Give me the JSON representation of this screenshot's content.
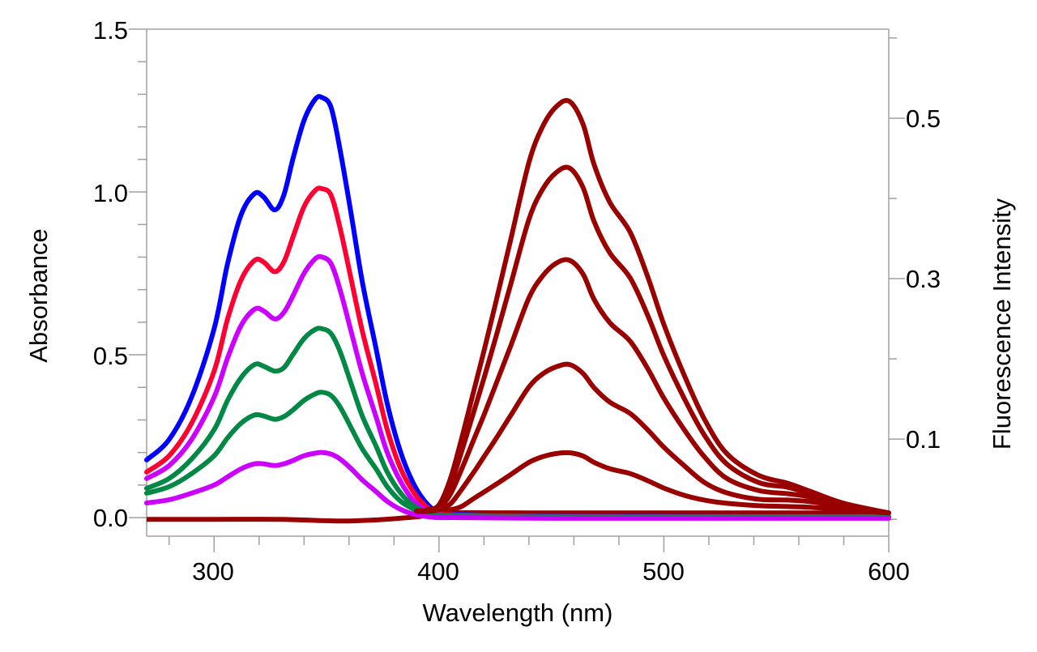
{
  "chart_data": {
    "type": "line",
    "xlabel": "Wavelength (nm)",
    "ylabel": "Absorbance",
    "ylabel_right": "Fluorescence Intensity",
    "xlim": [
      270,
      600
    ],
    "ylim": [
      -0.057,
      1.5
    ],
    "ylim_right": [
      -0.021,
      0.611
    ],
    "grid": false,
    "x_ticks": [
      "300",
      "400",
      "500",
      "600"
    ],
    "y_ticks": [
      "0.0",
      "0.5",
      "1.0",
      "1.5"
    ],
    "y_right_ticks": [
      "0.1",
      "0.3",
      "0.5"
    ],
    "absorbance": {
      "x": [
        270,
        280,
        290,
        300,
        306,
        312,
        318,
        322,
        327,
        331,
        335,
        340,
        345,
        348,
        352,
        356,
        361,
        366,
        372,
        377,
        383,
        389,
        395,
        400,
        410,
        450,
        500,
        550,
        600
      ],
      "series": [
        {
          "color": "#0000ff",
          "values": [
            0.177,
            0.24,
            0.37,
            0.58,
            0.78,
            0.93,
            0.995,
            0.985,
            0.945,
            0.99,
            1.1,
            1.22,
            1.285,
            1.29,
            1.26,
            1.13,
            0.93,
            0.72,
            0.52,
            0.35,
            0.2,
            0.1,
            0.04,
            0.02,
            0.01,
            0.005,
            0.004,
            0.003,
            0.003
          ]
        },
        {
          "color": "#ff0033",
          "values": [
            0.14,
            0.19,
            0.29,
            0.45,
            0.61,
            0.73,
            0.79,
            0.785,
            0.755,
            0.785,
            0.86,
            0.955,
            1.005,
            1.01,
            0.99,
            0.89,
            0.73,
            0.57,
            0.41,
            0.27,
            0.15,
            0.075,
            0.03,
            0.015,
            0.008,
            0.004,
            0.003,
            0.003,
            0.003
          ]
        },
        {
          "color": "#cc00ff",
          "values": [
            0.12,
            0.16,
            0.24,
            0.37,
            0.49,
            0.59,
            0.64,
            0.635,
            0.61,
            0.63,
            0.68,
            0.75,
            0.795,
            0.8,
            0.78,
            0.7,
            0.57,
            0.44,
            0.31,
            0.2,
            0.11,
            0.05,
            0.02,
            0.01,
            0.005,
            0.003,
            0.002,
            0.002,
            0.002
          ]
        },
        {
          "color": "#008844",
          "values": [
            0.09,
            0.12,
            0.18,
            0.27,
            0.36,
            0.43,
            0.47,
            0.465,
            0.45,
            0.46,
            0.5,
            0.55,
            0.578,
            0.58,
            0.565,
            0.51,
            0.41,
            0.31,
            0.22,
            0.14,
            0.075,
            0.035,
            0.015,
            0.008,
            0.005,
            0.003,
            0.002,
            0.002,
            0.002
          ]
        },
        {
          "color": "#008844",
          "values": [
            0.075,
            0.095,
            0.135,
            0.19,
            0.245,
            0.29,
            0.315,
            0.312,
            0.302,
            0.31,
            0.33,
            0.36,
            0.38,
            0.385,
            0.375,
            0.34,
            0.275,
            0.21,
            0.15,
            0.095,
            0.05,
            0.025,
            0.01,
            0.006,
            0.004,
            0.003,
            0.002,
            0.002,
            0.002
          ]
        },
        {
          "color": "#cc00ff",
          "values": [
            0.045,
            0.055,
            0.075,
            0.1,
            0.125,
            0.15,
            0.165,
            0.165,
            0.16,
            0.165,
            0.175,
            0.19,
            0.198,
            0.2,
            0.195,
            0.18,
            0.15,
            0.115,
            0.08,
            0.05,
            0.025,
            0.01,
            0.003,
            0.0,
            0.0,
            -0.002,
            -0.002,
            -0.002,
            -0.002
          ]
        }
      ]
    },
    "fluorescence": {
      "x": [
        390,
        395,
        400,
        405,
        410,
        416,
        420,
        425,
        432,
        440,
        446,
        452,
        458,
        464,
        469,
        476,
        485,
        493,
        500,
        509,
        518,
        528,
        542,
        555,
        565,
        580,
        600
      ],
      "color": "#990000",
      "series": [
        {
          "values": [
            0.01,
            0.012,
            0.018,
            0.05,
            0.1,
            0.166,
            0.21,
            0.267,
            0.35,
            0.445,
            0.489,
            0.514,
            0.521,
            0.493,
            0.442,
            0.395,
            0.358,
            0.301,
            0.243,
            0.18,
            0.125,
            0.082,
            0.055,
            0.045,
            0.035,
            0.02,
            0.008
          ]
        },
        {
          "values": [
            0.01,
            0.012,
            0.016,
            0.042,
            0.084,
            0.139,
            0.176,
            0.224,
            0.294,
            0.374,
            0.411,
            0.432,
            0.438,
            0.414,
            0.371,
            0.332,
            0.301,
            0.253,
            0.204,
            0.151,
            0.105,
            0.069,
            0.046,
            0.04,
            0.032,
            0.019,
            0.008
          ]
        },
        {
          "values": [
            0.01,
            0.011,
            0.014,
            0.031,
            0.062,
            0.103,
            0.13,
            0.166,
            0.217,
            0.276,
            0.303,
            0.319,
            0.323,
            0.306,
            0.274,
            0.245,
            0.222,
            0.187,
            0.151,
            0.112,
            0.078,
            0.051,
            0.036,
            0.032,
            0.028,
            0.018,
            0.008
          ]
        },
        {
          "values": [
            0.01,
            0.01,
            0.012,
            0.019,
            0.037,
            0.061,
            0.078,
            0.099,
            0.13,
            0.165,
            0.181,
            0.19,
            0.193,
            0.182,
            0.164,
            0.146,
            0.132,
            0.111,
            0.09,
            0.067,
            0.046,
            0.033,
            0.025,
            0.024,
            0.022,
            0.016,
            0.008
          ]
        },
        {
          "values": [
            0.01,
            0.01,
            0.012,
            0.012,
            0.016,
            0.027,
            0.034,
            0.043,
            0.056,
            0.071,
            0.078,
            0.082,
            0.083,
            0.079,
            0.071,
            0.063,
            0.057,
            0.048,
            0.039,
            0.03,
            0.024,
            0.02,
            0.017,
            0.016,
            0.015,
            0.012,
            0.008
          ]
        }
      ],
      "baseline": {
        "x": [
          270,
          300,
          330,
          360,
          390,
          400,
          450,
          500,
          550,
          600
        ],
        "values": [
          0.0,
          0.0,
          0.0,
          -0.002,
          0.003,
          0.008,
          0.008,
          0.008,
          0.008,
          0.008
        ]
      }
    }
  }
}
